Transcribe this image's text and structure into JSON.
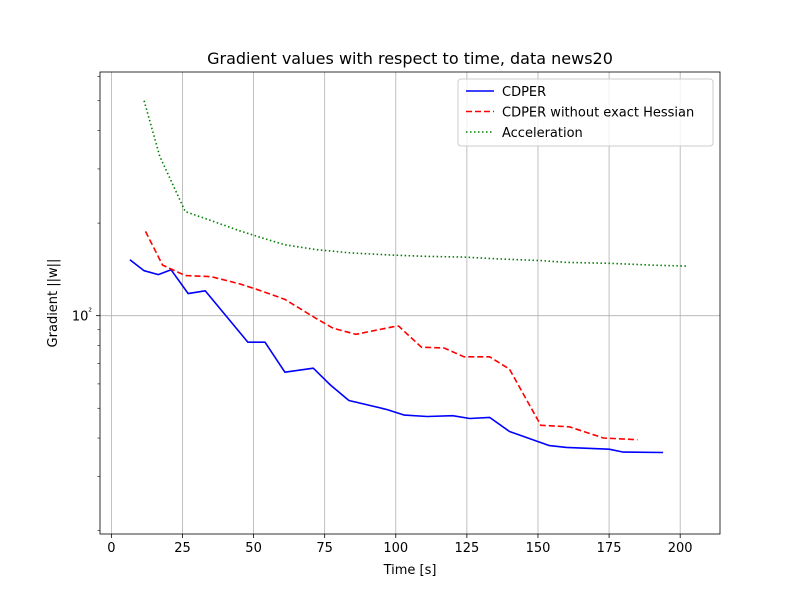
{
  "chart_data": {
    "type": "line",
    "title": "Gradient values with respect to time, data news20",
    "xlabel": "Time [s]",
    "ylabel": "Gradient ||w||",
    "xlim": [
      -4,
      214
    ],
    "ylim": [
      19.5,
      620
    ],
    "yscale": "log",
    "xticks": [
      0,
      25,
      50,
      75,
      100,
      125,
      150,
      175,
      200
    ],
    "yticks": [
      {
        "value": 100,
        "label": "10²"
      }
    ],
    "grid": true,
    "legend_position": "top-right",
    "series": [
      {
        "name": "CDPER",
        "color": "#0000ff",
        "style": "solid",
        "points": [
          [
            6.5,
            152
          ],
          [
            11.5,
            140
          ],
          [
            16.5,
            136
          ],
          [
            21,
            141
          ],
          [
            27,
            118
          ],
          [
            33,
            120.5
          ],
          [
            48,
            82
          ],
          [
            54,
            82
          ],
          [
            61,
            65.5
          ],
          [
            71,
            67.5
          ],
          [
            77,
            59.5
          ],
          [
            83.5,
            53
          ],
          [
            97,
            49.5
          ],
          [
            103,
            47.5
          ],
          [
            111,
            47
          ],
          [
            120,
            47.3
          ],
          [
            126,
            46.3
          ],
          [
            133,
            46.7
          ],
          [
            140,
            42
          ],
          [
            154,
            37.8
          ],
          [
            160,
            37.3
          ],
          [
            175,
            36.8
          ],
          [
            180,
            36
          ],
          [
            194,
            35.9
          ]
        ]
      },
      {
        "name": "CDPER without exact Hessian",
        "color": "#ff0000",
        "style": "dashed",
        "points": [
          [
            12,
            188
          ],
          [
            18,
            146
          ],
          [
            26,
            135
          ],
          [
            35,
            134
          ],
          [
            45,
            127
          ],
          [
            52,
            121
          ],
          [
            61,
            113
          ],
          [
            72,
            98
          ],
          [
            78,
            91
          ],
          [
            86,
            87
          ],
          [
            99,
            92
          ],
          [
            101,
            92.5
          ],
          [
            109,
            79
          ],
          [
            117,
            78.5
          ],
          [
            124,
            73.5
          ],
          [
            133,
            73.5
          ],
          [
            140,
            67
          ],
          [
            151,
            44
          ],
          [
            161,
            43.5
          ],
          [
            173,
            40
          ],
          [
            185,
            39.5
          ]
        ]
      },
      {
        "name": "Acceleration",
        "color": "#008000",
        "style": "dotted",
        "points": [
          [
            11.5,
            500
          ],
          [
            17,
            330
          ],
          [
            26,
            218
          ],
          [
            35,
            204
          ],
          [
            45,
            189
          ],
          [
            53,
            179
          ],
          [
            61,
            170
          ],
          [
            72,
            164
          ],
          [
            84,
            160
          ],
          [
            98,
            157.5
          ],
          [
            110,
            156
          ],
          [
            124,
            155
          ],
          [
            136,
            153
          ],
          [
            151,
            151
          ],
          [
            160,
            149
          ],
          [
            175,
            148
          ],
          [
            190,
            146
          ],
          [
            202,
            145
          ]
        ]
      }
    ]
  }
}
